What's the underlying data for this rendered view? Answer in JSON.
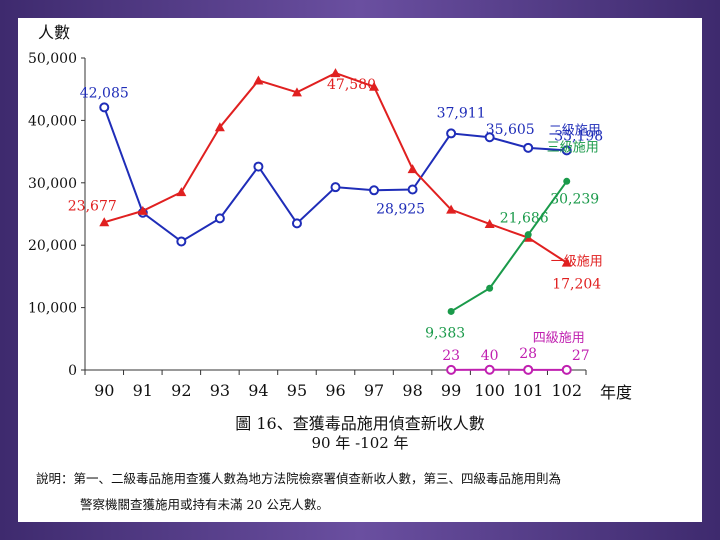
{
  "chart_data": {
    "type": "line",
    "ylabel": "人數",
    "xlabel": "年度",
    "ylim": [
      0,
      50000
    ],
    "yticks": [
      "0",
      "10,000",
      "20,000",
      "30,000",
      "40,000",
      "50,000"
    ],
    "categories": [
      "90",
      "91",
      "92",
      "93",
      "94",
      "95",
      "96",
      "97",
      "98",
      "99",
      "100",
      "101",
      "102"
    ],
    "grid": false,
    "series": [
      {
        "name": "二級施用",
        "color": "#1f2db8",
        "marker": "circle-open",
        "values": [
          42085,
          25200,
          20600,
          24300,
          32600,
          23500,
          29300,
          28800,
          28925,
          37911,
          37300,
          35605,
          35198
        ]
      },
      {
        "name": "一級施用",
        "color": "#e02020",
        "marker": "triangle",
        "values": [
          23677,
          25500,
          28500,
          38900,
          46400,
          44500,
          47580,
          45400,
          32200,
          25700,
          23400,
          21200,
          17204
        ]
      },
      {
        "name": "三級施用",
        "color": "#1a9a4a",
        "marker": "circle-filled",
        "values": [
          null,
          null,
          null,
          null,
          null,
          null,
          null,
          null,
          null,
          9383,
          13100,
          21686,
          30239
        ]
      },
      {
        "name": "四級施用",
        "color": "#c020b0",
        "marker": "circle-open",
        "values": [
          null,
          null,
          null,
          null,
          null,
          null,
          null,
          null,
          null,
          23,
          40,
          28,
          27
        ]
      }
    ],
    "data_labels": [
      {
        "series": 0,
        "index": 0,
        "text": "42,085"
      },
      {
        "series": 0,
        "index": 8,
        "text": "28,925"
      },
      {
        "series": 0,
        "index": 9,
        "text": "37,911"
      },
      {
        "series": 0,
        "index": 11,
        "text": "35,605"
      },
      {
        "series": 0,
        "index": 12,
        "text": "35,198"
      },
      {
        "series": 1,
        "index": 0,
        "text": "23,677"
      },
      {
        "series": 1,
        "index": 6,
        "text": "47,580"
      },
      {
        "series": 1,
        "index": 12,
        "text": "17,204"
      },
      {
        "series": 2,
        "index": 9,
        "text": "9,383"
      },
      {
        "series": 2,
        "index": 11,
        "text": "21,686"
      },
      {
        "series": 2,
        "index": 12,
        "text": "30,239"
      },
      {
        "series": 3,
        "index": 9,
        "text": "23"
      },
      {
        "series": 3,
        "index": 10,
        "text": "40"
      },
      {
        "series": 3,
        "index": 11,
        "text": "28"
      },
      {
        "series": 3,
        "index": 12,
        "text": "27"
      }
    ]
  },
  "caption": {
    "line1": "圖 16、查獲毒品施用偵查新收人數",
    "line2": "90 年 -102 年"
  },
  "note": {
    "line1": "說明：第一、二級毒品施用查獲人數為地方法院檢察署偵查新收人數，第三、四級毒品施用則為",
    "line2": "警察機關查獲施用或持有未滿 20 公克人數。"
  }
}
